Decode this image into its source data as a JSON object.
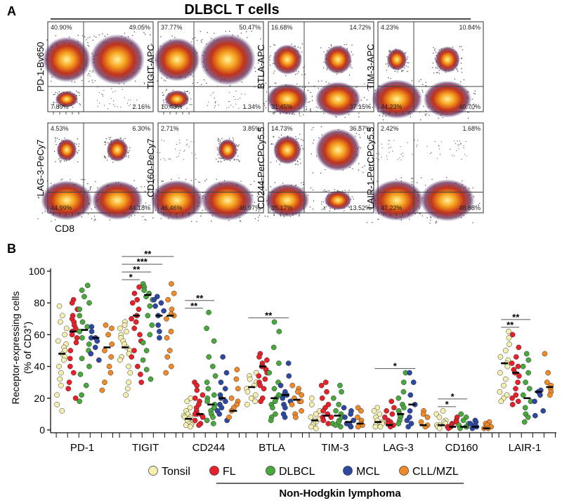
{
  "figure_title": "DLBCL T cells",
  "panel_labels": {
    "a": "A",
    "b": "B"
  },
  "chart_data": [
    {
      "type": "scatter",
      "panel": "A",
      "title": "DLBCL T cells",
      "xlabel": "CD8",
      "plots": [
        {
          "ylabel": "PD-1-Bv650",
          "q": [
            "40.90%",
            "49.05%",
            "7.89%",
            "2.16%"
          ]
        },
        {
          "ylabel": "TIGIT-APC",
          "q": [
            "37.77%",
            "50.47%",
            "10.43%",
            "1.34%"
          ]
        },
        {
          "ylabel": "BTLA-APC",
          "q": [
            "16.68%",
            "14.72%",
            "31.45%",
            "37.15%"
          ]
        },
        {
          "ylabel": "TIM-3-APC",
          "q": [
            "4.23%",
            "10.84%",
            "44.23%",
            "40.70%"
          ]
        },
        {
          "ylabel": "LAG-3-PeCy7",
          "q": [
            "4.53%",
            "6.30%",
            "44.99%",
            "44.18%"
          ]
        },
        {
          "ylabel": "CD160-PeCy7",
          "q": [
            "2.71%",
            "3.85%",
            "46.46%",
            "46.97%"
          ]
        },
        {
          "ylabel": "CD244-PerCPCy5.5",
          "q": [
            "14.73%",
            "36.57%",
            "35.17%",
            "13.52%"
          ]
        },
        {
          "ylabel": "LAIR-1-PerCPCy5.5",
          "q": [
            "2.42%",
            "1.68%",
            "47.22%",
            "48.68%"
          ]
        }
      ]
    },
    {
      "type": "scatter",
      "panel": "B",
      "ylabel_line1": "Receptor-expressing cells",
      "ylabel_line2": "(% of CD3",
      "ylabel_sup": "+",
      "ylabel_end": ")",
      "ylim": [
        0,
        100
      ],
      "yticks": [
        "0",
        "20",
        "40",
        "60",
        "80",
        "100"
      ],
      "categories": [
        "PD-1",
        "TIGIT",
        "CD244",
        "BTLA",
        "TIM-3",
        "LAG-3",
        "CD160",
        "LAIR-1"
      ],
      "groups": [
        {
          "name": "Tonsil",
          "color": "#f6f0b0"
        },
        {
          "name": "FL",
          "color": "#e8202a"
        },
        {
          "name": "DLBCL",
          "color": "#48a83c"
        },
        {
          "name": "MCL",
          "color": "#2d48a0"
        },
        {
          "name": "CLL/MZL",
          "color": "#f08a28"
        }
      ],
      "legend_group_label": "Non-Hodgkin lymphoma",
      "values": {
        "PD-1": {
          "Tonsil": [
            78,
            72,
            68,
            64,
            60,
            56,
            54,
            52,
            50,
            48,
            46,
            44,
            40,
            36,
            32,
            28,
            22,
            16,
            12
          ],
          "FL": [
            82,
            80,
            76,
            72,
            70,
            68,
            66,
            64,
            62,
            60,
            58,
            55,
            50,
            45,
            40,
            36,
            30,
            26,
            20
          ],
          "DLBCL": [
            91,
            88,
            84,
            80,
            76,
            72,
            68,
            65,
            62,
            58,
            54,
            50,
            45,
            40,
            35,
            28,
            22,
            18
          ],
          "MCL": [
            65,
            62,
            58,
            58,
            56,
            52,
            48,
            44
          ],
          "CLL/MZL": [
            66,
            64,
            60,
            54,
            50,
            46,
            40,
            36,
            30,
            25
          ]
        },
        "TIGIT": {
          "Tonsil": [
            68,
            66,
            64,
            62,
            60,
            58,
            56,
            54,
            52,
            50,
            48,
            46,
            44,
            40,
            36,
            30,
            26,
            22
          ],
          "FL": [
            90,
            86,
            82,
            80,
            76,
            72,
            70,
            68,
            64,
            60,
            56,
            50,
            46,
            40,
            35,
            30
          ],
          "DLBCL": [
            92,
            90,
            88,
            86,
            84,
            82,
            78,
            72,
            66,
            60,
            55,
            50,
            44,
            38,
            32
          ],
          "MCL": [
            84,
            82,
            80,
            78,
            75,
            72,
            66,
            62,
            58
          ],
          "CLL/MZL": [
            92,
            86,
            82,
            76,
            73,
            72,
            70,
            62,
            58,
            50,
            46,
            40,
            36
          ]
        },
        "CD244": {
          "Tonsil": [
            20,
            18,
            14,
            12,
            10,
            9,
            8,
            8,
            7,
            6,
            5,
            4,
            3,
            3,
            2
          ],
          "FL": [
            30,
            28,
            25,
            22,
            20,
            18,
            16,
            14,
            12,
            10,
            10,
            9,
            8,
            6,
            4,
            3
          ],
          "DLBCL": [
            74,
            64,
            56,
            46,
            40,
            34,
            30,
            26,
            22,
            20,
            18,
            16,
            14,
            14,
            12,
            10,
            8,
            6,
            4
          ],
          "MCL": [
            46,
            36,
            30,
            26,
            22,
            20,
            18,
            16,
            14,
            12,
            10,
            6
          ],
          "CLL/MZL": [
            38,
            32,
            26,
            20,
            18,
            16,
            14,
            12,
            8
          ]
        },
        "BTLA": {
          "Tonsil": [
            36,
            34,
            32,
            30,
            28,
            26,
            24,
            22,
            20,
            18,
            16
          ],
          "FL": [
            48,
            46,
            44,
            42,
            40,
            40,
            38,
            36,
            34,
            32,
            30,
            28,
            26,
            20,
            18
          ],
          "DLBCL": [
            68,
            62,
            52,
            42,
            36,
            30,
            26,
            22,
            20,
            18,
            16,
            14,
            10,
            8,
            6
          ],
          "MCL": [
            42,
            34,
            28,
            24,
            22,
            22,
            20,
            18,
            16,
            14,
            10,
            8
          ],
          "CLL/MZL": [
            28,
            26,
            24,
            22,
            20,
            18,
            18,
            16,
            12,
            10,
            8
          ]
        },
        "TIM-3": {
          "Tonsil": [
            20,
            16,
            12,
            10,
            8,
            7,
            6,
            5,
            4,
            3,
            2,
            1
          ],
          "FL": [
            30,
            28,
            24,
            20,
            16,
            14,
            12,
            10,
            8,
            8,
            6,
            4
          ],
          "DLBCL": [
            28,
            24,
            20,
            16,
            12,
            10,
            8,
            6,
            5,
            4,
            3,
            2
          ],
          "MCL": [
            14,
            12,
            10,
            8,
            6,
            4,
            3,
            2
          ],
          "CLL/MZL": [
            14,
            12,
            8,
            6,
            4,
            3,
            2
          ]
        },
        "LAG-3": {
          "Tonsil": [
            14,
            12,
            10,
            8,
            6,
            5,
            4,
            3,
            3,
            2,
            2
          ],
          "FL": [
            18,
            14,
            12,
            10,
            8,
            6,
            5,
            4,
            3,
            2
          ],
          "DLBCL": [
            36,
            30,
            24,
            20,
            16,
            14,
            12,
            10,
            9,
            8,
            6,
            4
          ],
          "MCL": [
            36,
            30,
            22,
            16,
            12,
            8,
            6,
            4,
            2
          ],
          "CLL/MZL": [
            12,
            10,
            8,
            5,
            3,
            2
          ]
        },
        "CD160": {
          "Tonsil": [
            12,
            10,
            8,
            6,
            5,
            4,
            3,
            3,
            2,
            2,
            1
          ],
          "FL": [
            8,
            6,
            5,
            4,
            3,
            2,
            2,
            1
          ],
          "DLBCL": [
            10,
            8,
            6,
            4,
            3,
            2,
            2,
            1
          ],
          "MCL": [
            6,
            5,
            4,
            3,
            2,
            1
          ],
          "CLL/MZL": [
            5,
            4,
            3,
            2,
            1,
            1
          ]
        },
        "LAIR-1": {
          "Tonsil": [
            62,
            58,
            54,
            50,
            46,
            44,
            42,
            40,
            36,
            32,
            28,
            24,
            22,
            20,
            18
          ],
          "FL": [
            60,
            52,
            46,
            42,
            40,
            38,
            36,
            34,
            30,
            26,
            22,
            20,
            18,
            16
          ],
          "DLBCL": [
            48,
            44,
            40,
            36,
            30,
            26,
            22,
            18,
            14,
            10,
            8,
            5
          ],
          "MCL": [
            25,
            24,
            22,
            18,
            12,
            9
          ],
          "CLL/MZL": [
            48,
            36,
            30,
            28,
            26,
            24,
            22
          ]
        }
      },
      "medians": {
        "PD-1": [
          48,
          62,
          63,
          58,
          52
        ],
        "TIGIT": [
          52,
          72,
          85,
          72,
          72
        ],
        "CD244": [
          7,
          10,
          16,
          20,
          12
        ],
        "BTLA": [
          27,
          40,
          20,
          22,
          19
        ],
        "TIM-3": [
          6,
          9,
          9,
          5,
          4
        ],
        "LAG-3": [
          5,
          3,
          10,
          16,
          3
        ],
        "CD160": [
          3,
          2,
          2,
          2,
          1
        ],
        "LAIR-1": [
          42,
          36,
          20,
          24,
          27
        ]
      },
      "significance": [
        {
          "category": "TIGIT",
          "from": 0,
          "to": 1,
          "label": "*"
        },
        {
          "category": "TIGIT",
          "from": 0,
          "to": 2,
          "label": "**"
        },
        {
          "category": "TIGIT",
          "from": 0,
          "to": 3,
          "label": "***"
        },
        {
          "category": "TIGIT",
          "from": 0,
          "to": 4,
          "label": "**"
        },
        {
          "category": "PD-1",
          "from": 0,
          "to": 0,
          "label": ""
        },
        {
          "category": "CD244",
          "from": 0,
          "to": 1,
          "label": "**"
        },
        {
          "category": "CD244",
          "from": 0,
          "to": 2,
          "label": "**"
        },
        {
          "category": "BTLA",
          "from": 0,
          "to": 3,
          "label": "**"
        },
        {
          "category": "LAG-3",
          "from": 0,
          "to": 3,
          "label": "*"
        },
        {
          "category": "CD160",
          "from": 0,
          "to": 1,
          "label": "*"
        },
        {
          "category": "CD160",
          "from": 0,
          "to": 2,
          "label": "*"
        },
        {
          "category": "LAIR-1",
          "from": 0,
          "to": 1,
          "label": "**"
        },
        {
          "category": "LAIR-1",
          "from": 0,
          "to": 2,
          "label": "**"
        }
      ]
    }
  ]
}
